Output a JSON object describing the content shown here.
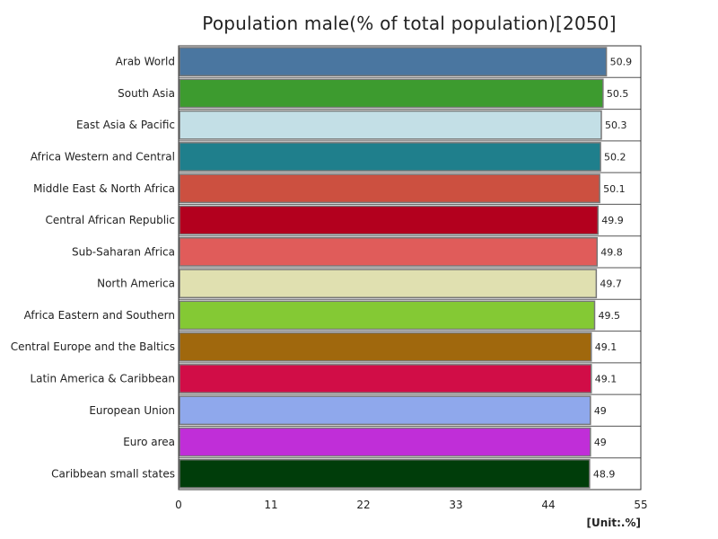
{
  "chart_data": {
    "type": "bar",
    "orientation": "horizontal",
    "title": "Population male(% of total population)[2050]",
    "unit_label": "[Unit:.%]",
    "categories": [
      "Arab World",
      "South Asia",
      "East Asia & Pacific",
      "Africa Western and Central",
      "Middle East & North Africa",
      "Central African Republic",
      "Sub-Saharan Africa",
      "North America",
      "Africa Eastern and Southern",
      "Central Europe and the Baltics",
      "Latin America & Caribbean",
      "European Union",
      "Euro area",
      "Caribbean small states"
    ],
    "values": [
      50.9,
      50.5,
      50.3,
      50.2,
      50.1,
      49.9,
      49.8,
      49.7,
      49.5,
      49.1,
      49.1,
      49,
      49,
      48.9
    ],
    "value_labels": [
      "50.9",
      "50.5",
      "50.3",
      "50.2",
      "50.1",
      "49.9",
      "49.8",
      "49.7",
      "49.5",
      "49.1",
      "49.1",
      "49",
      "49",
      "48.9"
    ],
    "colors": [
      "#4a76a0",
      "#3d9b2f",
      "#c3dfe6",
      "#1f7f8c",
      "#cc5040",
      "#b3001e",
      "#e05c5a",
      "#e0e0b0",
      "#84c934",
      "#a0680d",
      "#d10d47",
      "#8fa8ec",
      "#c02ed8",
      "#003d0a"
    ],
    "xlim": [
      0,
      55
    ],
    "xticks": [
      "0",
      "11",
      "22",
      "33",
      "44",
      "55"
    ],
    "grid": false
  }
}
